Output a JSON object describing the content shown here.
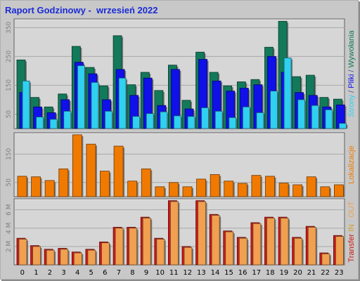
{
  "title": "Raport Godzinowy -  wrzesień 2022",
  "colors": {
    "hits": "#127a5a",
    "files": "#1010e8",
    "pages": "#30d0f0",
    "sites": "#f07a00",
    "kb_in": "#d01818",
    "kb_out": "#f0a050",
    "background": "#c8c8c8",
    "plot_bg": "#d6d6d6"
  },
  "chart_data": [
    {
      "type": "bar",
      "categories": [
        "0",
        "1",
        "2",
        "3",
        "4",
        "5",
        "6",
        "7",
        "8",
        "9",
        "10",
        "11",
        "12",
        "13",
        "14",
        "15",
        "16",
        "17",
        "18",
        "19",
        "20",
        "21",
        "22",
        "23"
      ],
      "series": [
        {
          "name": "Strony",
          "values": [
            165,
            40,
            32,
            60,
            218,
            160,
            60,
            175,
            42,
            52,
            58,
            44,
            42,
            72,
            60,
            38,
            75,
            55,
            130,
            245,
            100,
            80,
            65,
            18
          ]
        },
        {
          "name": "Pliki",
          "values": [
            125,
            75,
            55,
            100,
            230,
            190,
            100,
            205,
            115,
            175,
            80,
            205,
            68,
            240,
            165,
            130,
            140,
            152,
            250,
            195,
            125,
            115,
            75,
            82
          ]
        },
        {
          "name": "Wywołania",
          "values": [
            238,
            108,
            75,
            120,
            285,
            212,
            148,
            322,
            152,
            195,
            132,
            220,
            98,
            265,
            195,
            148,
            162,
            170,
            282,
            372,
            180,
            185,
            108,
            102
          ]
        }
      ],
      "yticks": [
        "50",
        "150",
        "250",
        "350"
      ],
      "ylim": [
        0,
        380
      ],
      "right_label": [
        {
          "text": "Strony",
          "color": "#30d0f0"
        },
        {
          "text": " / ",
          "color": "#5050a0"
        },
        {
          "text": "Pliki",
          "color": "#1010e8"
        },
        {
          "text": " / ",
          "color": "#5050a0"
        },
        {
          "text": "Wywołania",
          "color": "#127a5a"
        }
      ]
    },
    {
      "type": "bar",
      "categories": [
        "0",
        "1",
        "2",
        "3",
        "4",
        "5",
        "6",
        "7",
        "8",
        "9",
        "10",
        "11",
        "12",
        "13",
        "14",
        "15",
        "16",
        "17",
        "18",
        "19",
        "20",
        "21",
        "22",
        "23"
      ],
      "series": [
        {
          "name": "Lokalizacje",
          "values": [
            72,
            70,
            57,
            98,
            218,
            185,
            90,
            178,
            55,
            98,
            35,
            50,
            35,
            62,
            78,
            55,
            47,
            75,
            72,
            48,
            42,
            70,
            35,
            42
          ]
        }
      ],
      "yticks": [
        "50",
        "150"
      ],
      "ylim": [
        0,
        225
      ],
      "right_label": [
        {
          "text": "Lokalizacje",
          "color": "#f07a00"
        }
      ]
    },
    {
      "type": "bar",
      "categories": [
        "0",
        "1",
        "2",
        "3",
        "4",
        "5",
        "6",
        "7",
        "8",
        "9",
        "10",
        "11",
        "12",
        "13",
        "14",
        "15",
        "16",
        "17",
        "18",
        "19",
        "20",
        "21",
        "22",
        "23"
      ],
      "series": [
        {
          "name": "Transfer IN",
          "values": [
            2.9,
            2.1,
            1.7,
            1.8,
            1.4,
            1.7,
            2.5,
            4.1,
            4.1,
            5.2,
            2.9,
            7.0,
            2.0,
            7.0,
            5.5,
            3.7,
            3.0,
            4.6,
            5.2,
            5.2,
            3.0,
            4.2,
            1.3,
            3.2
          ]
        },
        {
          "name": "Transfer OUT",
          "values": [
            2.8,
            2.0,
            1.6,
            1.7,
            1.3,
            1.6,
            2.4,
            4.0,
            4.0,
            5.1,
            2.8,
            6.9,
            1.9,
            6.9,
            5.4,
            3.6,
            2.9,
            4.5,
            5.1,
            5.1,
            2.9,
            4.1,
            1.2,
            3.1
          ]
        }
      ],
      "yticks": [
        "2 M",
        "4 M",
        "6 M"
      ],
      "ytick_values": [
        2,
        4,
        6
      ],
      "ylim": [
        0,
        7.2
      ],
      "right_label": [
        {
          "text": "Transfer",
          "color": "#d01818"
        },
        {
          "text": " IN",
          "color": "#d0a030"
        },
        {
          "text": " / ",
          "color": "#c0c0c0"
        },
        {
          "text": "OUT",
          "color": "#f0a050"
        }
      ]
    }
  ]
}
